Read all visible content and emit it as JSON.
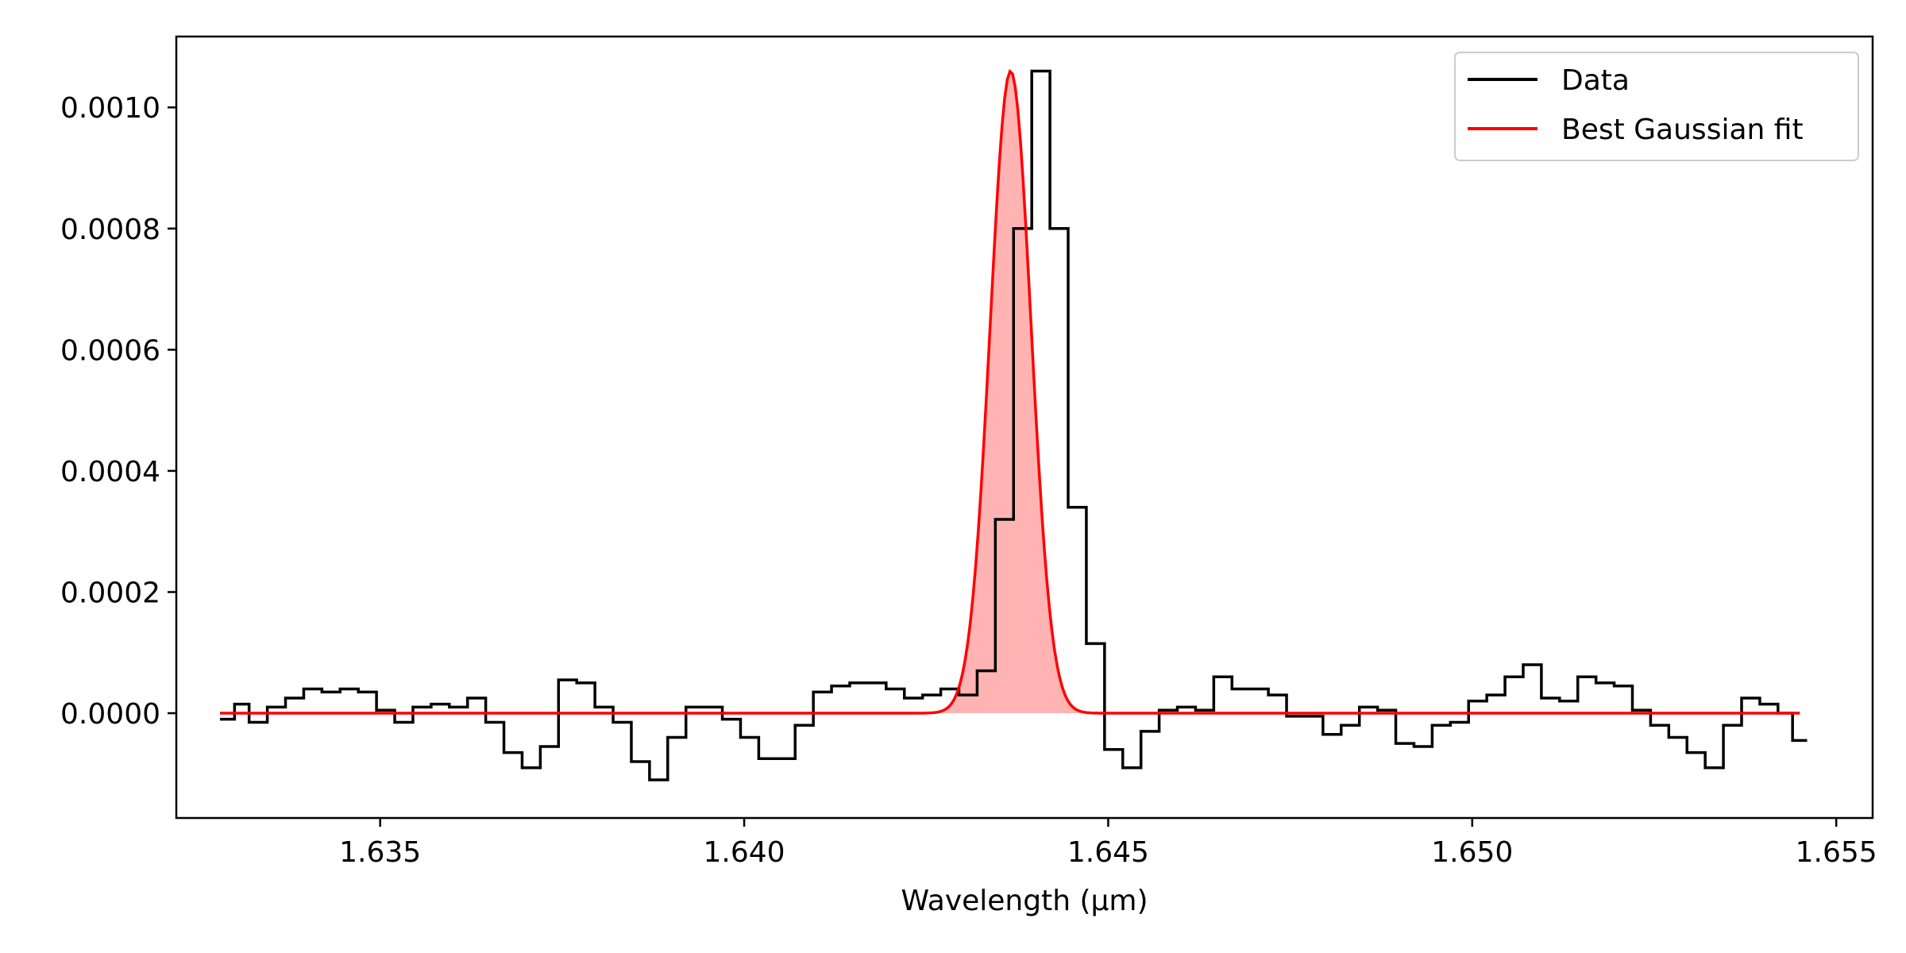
{
  "chart_data": {
    "type": "line",
    "title": "",
    "xlabel": "Wavelength (µm)",
    "ylabel": "",
    "xlim": [
      1.6322,
      1.6555
    ],
    "ylim": [
      -0.000173,
      0.001117
    ],
    "xticks": [
      1.635,
      1.64,
      1.645,
      1.65,
      1.655
    ],
    "xtick_labels": [
      "1.635",
      "1.640",
      "1.645",
      "1.650",
      "1.655"
    ],
    "yticks": [
      0.0,
      0.0002,
      0.0004,
      0.0006,
      0.0008,
      0.001
    ],
    "ytick_labels": [
      "0.0000",
      "0.0002",
      "0.0004",
      "0.0006",
      "0.0008",
      "0.0010"
    ],
    "grid": false,
    "legend_position": "top-right",
    "legend": [
      "Data",
      "Best Gaussian fit"
    ],
    "series": [
      {
        "name": "Data",
        "style": "step",
        "color": "#000000",
        "x": [
          1.6329,
          1.6331,
          1.6333,
          1.6336,
          1.6338,
          1.6341,
          1.6343,
          1.6346,
          1.6348,
          1.6351,
          1.6353,
          1.6356,
          1.6358,
          1.6361,
          1.6363,
          1.6366,
          1.6368,
          1.6371,
          1.6373,
          1.6376,
          1.6378,
          1.6381,
          1.6383,
          1.6386,
          1.6388,
          1.6391,
          1.6393,
          1.6396,
          1.6398,
          1.6401,
          1.6403,
          1.6406,
          1.6408,
          1.6411,
          1.6413,
          1.6416,
          1.6418,
          1.6421,
          1.6423,
          1.6426,
          1.6428,
          1.6431,
          1.6433,
          1.6436,
          1.6438,
          1.6441,
          1.6443,
          1.6446,
          1.6448,
          1.6451,
          1.6453,
          1.6456,
          1.6458,
          1.6461,
          1.6463,
          1.6466,
          1.6468,
          1.6471,
          1.6473,
          1.6476,
          1.6478,
          1.6481,
          1.6483,
          1.6486,
          1.6488,
          1.6491,
          1.6493,
          1.6496,
          1.6498,
          1.6501,
          1.6503,
          1.6506,
          1.6508,
          1.6511,
          1.6513,
          1.6516,
          1.6518,
          1.6521,
          1.6523,
          1.6526,
          1.6528,
          1.6531,
          1.6533,
          1.6536,
          1.6538,
          1.6541,
          1.6543,
          1.6545
        ],
        "y": [
          -1e-05,
          1.5e-05,
          -1.5e-05,
          1e-05,
          2.5e-05,
          4e-05,
          3.5e-05,
          4e-05,
          3.5e-05,
          5e-06,
          -1.5e-05,
          1e-05,
          1.5e-05,
          1e-05,
          2.5e-05,
          -1.5e-05,
          -6.5e-05,
          -9e-05,
          -5.5e-05,
          5.5e-05,
          5e-05,
          1e-05,
          -1.5e-05,
          -8e-05,
          -0.00011,
          -4e-05,
          1e-05,
          1e-05,
          -1e-05,
          -4e-05,
          -7.5e-05,
          -7.5e-05,
          -2e-05,
          3.5e-05,
          4.5e-05,
          5e-05,
          5e-05,
          4e-05,
          2.5e-05,
          3e-05,
          4e-05,
          3e-05,
          7e-05,
          0.00032,
          0.0008,
          0.00106,
          0.0008,
          0.00034,
          0.000115,
          -6e-05,
          -9e-05,
          -3e-05,
          5e-06,
          1e-05,
          5e-06,
          6e-05,
          4e-05,
          4e-05,
          3e-05,
          -5e-06,
          -5e-06,
          -3.5e-05,
          -2e-05,
          1e-05,
          5e-06,
          -5e-05,
          -5.5e-05,
          -2e-05,
          -1.5e-05,
          2e-05,
          3e-05,
          6e-05,
          8e-05,
          2.5e-05,
          2e-05,
          6e-05,
          5e-05,
          4.5e-05,
          5e-06,
          -2e-05,
          -4e-05,
          -6.5e-05,
          -9e-05,
          -2e-05,
          2.5e-05,
          1.5e-05,
          0.0,
          -4.5e-05
        ]
      },
      {
        "name": "Best Gaussian fit",
        "style": "gaussian",
        "color": "#ff0000",
        "fill_color": "#ffb3b3",
        "amplitude": 0.00106,
        "center": 1.64366,
        "sigma": 0.00028,
        "baseline": 0.0,
        "x_range": [
          1.6328,
          1.6545
        ]
      }
    ]
  }
}
